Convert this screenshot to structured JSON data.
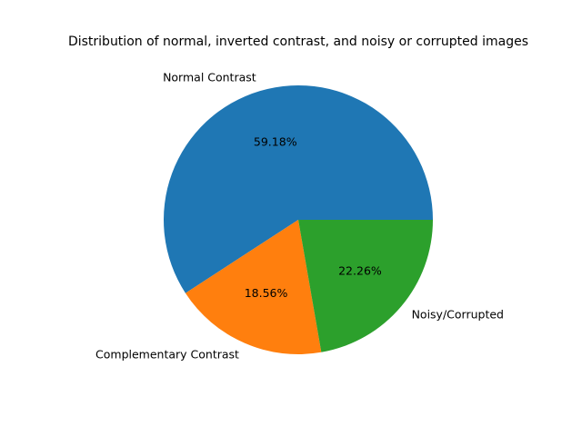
{
  "chart_data": {
    "type": "pie",
    "title": "Distribution of normal, inverted contrast, and noisy or corrupted images",
    "labels": [
      "Normal Contrast",
      "Complementary Contrast",
      "Noisy/Corrupted"
    ],
    "values": [
      59.18,
      18.56,
      22.26
    ],
    "percent_labels": [
      "59.18%",
      "18.56%",
      "22.26%"
    ],
    "colors": [
      "#1f77b4",
      "#ff7f0e",
      "#2ca02c"
    ],
    "start_angle_deg": 0,
    "direction": "counterclockwise",
    "legend": false
  }
}
